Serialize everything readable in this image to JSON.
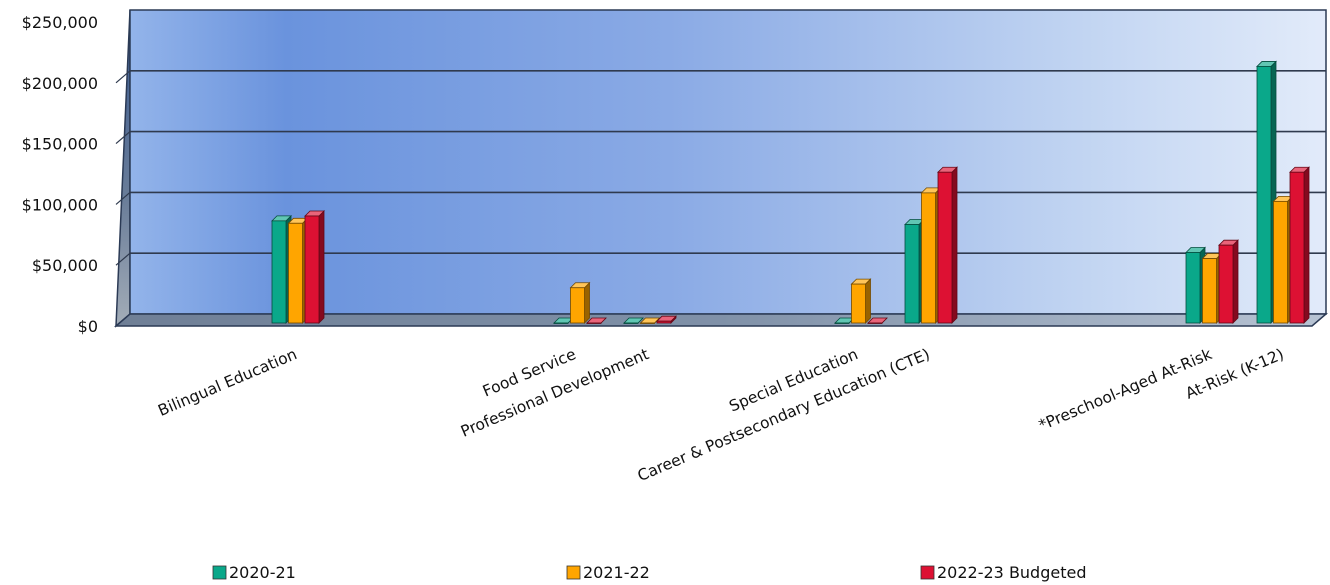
{
  "chart_data": {
    "type": "bar",
    "title": "",
    "xlabel": "",
    "ylabel": "",
    "ylim": [
      0,
      250000
    ],
    "yticks": [
      "$0",
      "$50,000",
      "$100,000",
      "$150,000",
      "$200,000",
      "$250,000"
    ],
    "categories": [
      "Bilingual Education",
      "Food Service",
      "Professional Development",
      "Special Education",
      "Career & Postsecondary Education (CTE)",
      "*Preschool-Aged At-Risk",
      "At-Risk (K-12)"
    ],
    "series": [
      {
        "name": "2020-21",
        "color": "#0aa88a",
        "values": [
          84000,
          0,
          0,
          0,
          81000,
          58000,
          211000
        ]
      },
      {
        "name": "2021-22",
        "color": "#ffa500",
        "values": [
          82000,
          29000,
          0,
          32000,
          107000,
          53000,
          100000
        ]
      },
      {
        "name": "2022-23 Budgeted",
        "color": "#dd1133",
        "values": [
          88000,
          0,
          1500,
          0,
          124000,
          64000,
          124000
        ]
      }
    ],
    "grid": true,
    "legend": "bottom"
  }
}
